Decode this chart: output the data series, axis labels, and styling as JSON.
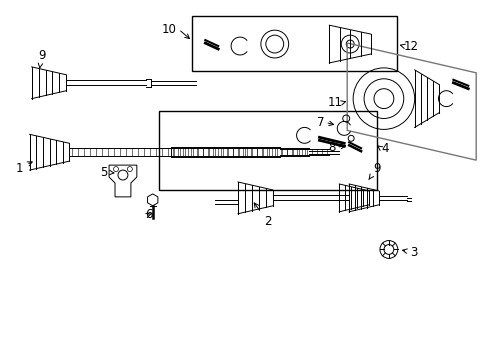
{
  "bg_color": "#ffffff",
  "line_color": "#000000",
  "fig_width": 4.9,
  "fig_height": 3.6,
  "dpi": 100,
  "lw_main": 1.0,
  "lw_thin": 0.7,
  "font_size": 8.5
}
